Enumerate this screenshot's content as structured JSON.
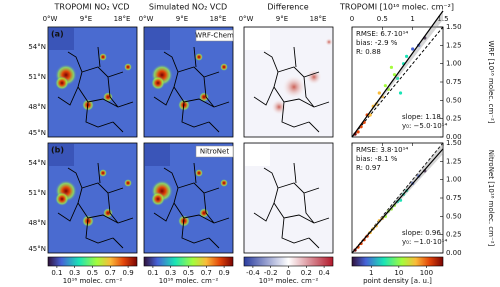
{
  "columns": [
    "TROPOMI NO₂ VCD",
    "Simulated NO₂ VCD",
    "Difference",
    "TROPOMI [10¹⁶ molec. cm⁻²]"
  ],
  "lon_ticks": [
    "0°W",
    "9°E",
    "18°E"
  ],
  "lat_ticks": [
    "54°N",
    "51°N",
    "48°N",
    "45°N"
  ],
  "rows": [
    {
      "label": "(a)",
      "model": "WRF-Chem",
      "y_axis_label": "WRF [10¹⁶ molec. cm⁻²]",
      "stats": [
        "RMSE: 6.7·10¹⁴",
        "bias: -2.9 %",
        "R: 0.88"
      ],
      "fit": [
        "slope: 1.18",
        "y₀: −5.0·10¹⁴"
      ],
      "x": [
        0.05,
        0.1,
        0.15,
        0.2,
        0.25,
        0.3,
        0.35,
        0.4,
        0.5,
        0.55,
        0.6,
        0.7,
        0.75,
        0.85,
        0.9,
        1.0,
        1.1,
        1.2,
        0.8,
        0.45,
        0.65
      ],
      "y": [
        0.04,
        0.07,
        0.14,
        0.2,
        0.3,
        0.3,
        0.42,
        0.45,
        0.55,
        0.7,
        0.65,
        0.85,
        0.8,
        1.0,
        1.1,
        1.2,
        1.25,
        1.35,
        0.6,
        0.6,
        0.95
      ]
    },
    {
      "label": "(b)",
      "model": "NitroNet",
      "y_axis_label": "NitroNet [10¹⁶ molec. cm⁻²]",
      "stats": [
        "RMSE: 3.8·10¹⁴",
        "bias: -8.1 %",
        "R: 0.97"
      ],
      "fit": [
        "slope: 0.96",
        "y₀: −1.0·10¹⁴"
      ],
      "x": [
        0.05,
        0.1,
        0.15,
        0.2,
        0.25,
        0.3,
        0.35,
        0.4,
        0.5,
        0.55,
        0.6,
        0.7,
        0.75,
        0.85,
        0.9,
        1.0,
        1.1,
        1.2,
        0.8,
        0.45,
        0.65
      ],
      "y": [
        0.04,
        0.08,
        0.13,
        0.18,
        0.23,
        0.28,
        0.33,
        0.37,
        0.47,
        0.5,
        0.57,
        0.65,
        0.7,
        0.8,
        0.85,
        0.95,
        1.05,
        1.12,
        0.72,
        0.44,
        0.6
      ]
    }
  ],
  "scatter": {
    "xlim": [
      0,
      1.5
    ],
    "xticks": [
      0,
      0.5,
      1,
      1.5
    ],
    "ylim": [
      0,
      1.5
    ],
    "yticks": [
      {
        "value": 0,
        "label": "0.00"
      },
      {
        "value": 0.25,
        "label": "0.25"
      },
      {
        "value": 0.5,
        "label": "0.50"
      },
      {
        "value": 0.75,
        "label": "0.75"
      },
      {
        "value": 1,
        "label": "1.00"
      },
      {
        "value": 1.25,
        "label": "1.25"
      },
      {
        "value": 1.5,
        "label": "1.50"
      }
    ]
  },
  "colorbars": [
    {
      "label": "10¹⁶ molec. cm⁻²",
      "lim": [
        0,
        1
      ],
      "ticks": [
        0.1,
        0.3,
        0.5,
        0.7,
        0.9
      ],
      "log": false
    },
    {
      "label": "10¹⁶ molec. cm⁻²",
      "lim": [
        0,
        1
      ],
      "ticks": [
        0.1,
        0.3,
        0.5,
        0.7,
        0.9
      ],
      "log": false
    },
    {
      "label": "10¹⁶ molec. cm⁻²",
      "lim": [
        -0.5,
        0.5
      ],
      "ticks": [
        -0.4,
        -0.2,
        0,
        0.2,
        0.4
      ],
      "log": false
    },
    {
      "label": "point density [a. u.]",
      "lim": [
        0.2,
        400
      ],
      "ticks": [
        1,
        10,
        100
      ],
      "log": true
    }
  ]
}
